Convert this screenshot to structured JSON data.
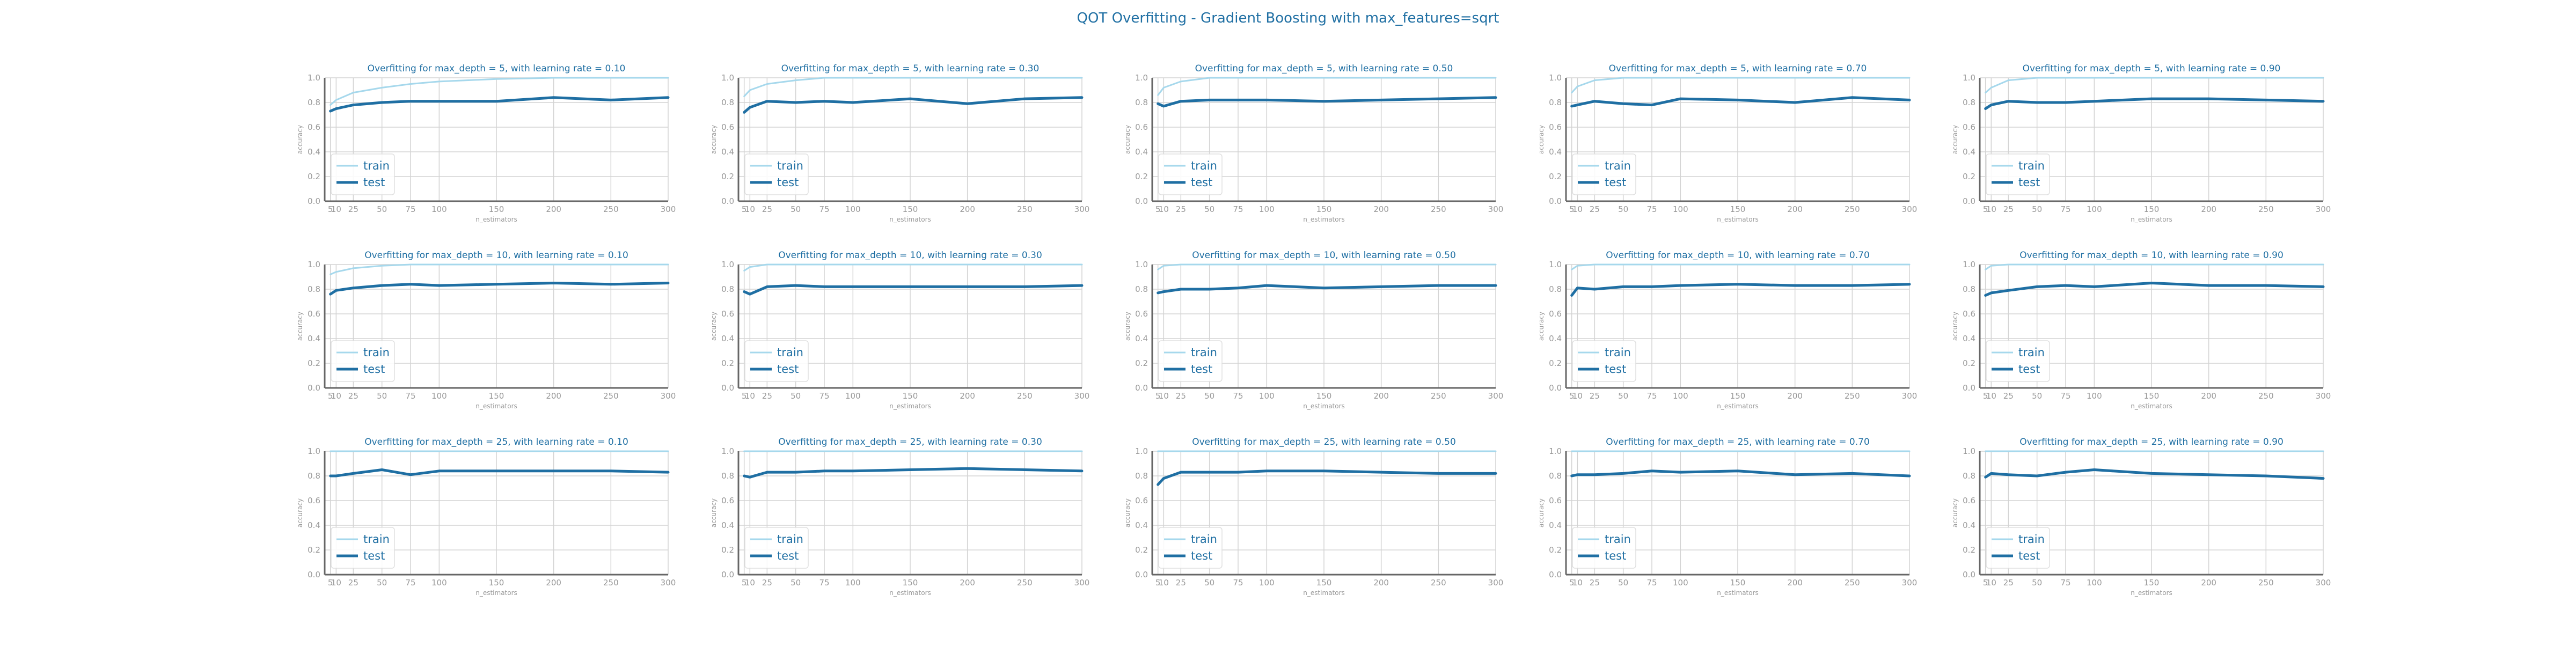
{
  "figure": {
    "title": "QOT Overfitting - Gradient Boosting with max_features=sqrt"
  },
  "colors": {
    "title": "#1f6fa3",
    "train": "#a6d8ec",
    "test": "#1f6fa3",
    "grid": "#d3d3d3",
    "axis": "#666666",
    "tick_text": "#999999",
    "legend_text": "#1f6fa3"
  },
  "chart_data": [
    {
      "type": "line",
      "title": "Overfitting for max_depth = 5, with learning rate = 0.10",
      "xlabel": "n_estimators",
      "ylabel": "accuracy",
      "xlim": [
        0,
        300
      ],
      "ylim": [
        0,
        1.0
      ],
      "xticks": [
        5,
        10,
        25,
        50,
        75,
        100,
        150,
        200,
        250,
        300
      ],
      "yticks": [
        0.0,
        0.2,
        0.4,
        0.6,
        0.8,
        1.0
      ],
      "grid": true,
      "legend": "lower left",
      "x": [
        5,
        10,
        25,
        50,
        75,
        100,
        150,
        200,
        250,
        300
      ],
      "series": [
        {
          "name": "train",
          "values": [
            0.78,
            0.82,
            0.88,
            0.92,
            0.95,
            0.97,
            0.99,
            1.0,
            1.0,
            1.0
          ]
        },
        {
          "name": "test",
          "values": [
            0.73,
            0.75,
            0.78,
            0.8,
            0.81,
            0.81,
            0.81,
            0.84,
            0.82,
            0.84
          ]
        }
      ]
    },
    {
      "type": "line",
      "title": "Overfitting for max_depth = 5, with learning rate = 0.30",
      "xlabel": "n_estimators",
      "ylabel": "accuracy",
      "xlim": [
        0,
        300
      ],
      "ylim": [
        0,
        1.0
      ],
      "xticks": [
        5,
        10,
        25,
        50,
        75,
        100,
        150,
        200,
        250,
        300
      ],
      "yticks": [
        0.0,
        0.2,
        0.4,
        0.6,
        0.8,
        1.0
      ],
      "grid": true,
      "legend": "lower left",
      "x": [
        5,
        10,
        25,
        50,
        75,
        100,
        150,
        200,
        250,
        300
      ],
      "series": [
        {
          "name": "train",
          "values": [
            0.85,
            0.9,
            0.95,
            0.98,
            1.0,
            1.0,
            1.0,
            1.0,
            1.0,
            1.0
          ]
        },
        {
          "name": "test",
          "values": [
            0.72,
            0.76,
            0.81,
            0.8,
            0.81,
            0.8,
            0.83,
            0.79,
            0.83,
            0.84
          ]
        }
      ]
    },
    {
      "type": "line",
      "title": "Overfitting for max_depth = 5, with learning rate = 0.50",
      "xlabel": "n_estimators",
      "ylabel": "accuracy",
      "xlim": [
        0,
        300
      ],
      "ylim": [
        0,
        1.0
      ],
      "xticks": [
        5,
        10,
        25,
        50,
        75,
        100,
        150,
        200,
        250,
        300
      ],
      "yticks": [
        0.0,
        0.2,
        0.4,
        0.6,
        0.8,
        1.0
      ],
      "grid": true,
      "legend": "lower left",
      "x": [
        5,
        10,
        25,
        50,
        75,
        100,
        150,
        200,
        250,
        300
      ],
      "series": [
        {
          "name": "train",
          "values": [
            0.86,
            0.92,
            0.97,
            1.0,
            1.0,
            1.0,
            1.0,
            1.0,
            1.0,
            1.0
          ]
        },
        {
          "name": "test",
          "values": [
            0.79,
            0.77,
            0.81,
            0.82,
            0.82,
            0.82,
            0.81,
            0.82,
            0.83,
            0.84
          ]
        }
      ]
    },
    {
      "type": "line",
      "title": "Overfitting for max_depth = 5, with learning rate = 0.70",
      "xlabel": "n_estimators",
      "ylabel": "accuracy",
      "xlim": [
        0,
        300
      ],
      "ylim": [
        0,
        1.0
      ],
      "xticks": [
        5,
        10,
        25,
        50,
        75,
        100,
        150,
        200,
        250,
        300
      ],
      "yticks": [
        0.0,
        0.2,
        0.4,
        0.6,
        0.8,
        1.0
      ],
      "grid": true,
      "legend": "lower left",
      "x": [
        5,
        10,
        25,
        50,
        75,
        100,
        150,
        200,
        250,
        300
      ],
      "series": [
        {
          "name": "train",
          "values": [
            0.88,
            0.93,
            0.98,
            1.0,
            1.0,
            1.0,
            1.0,
            1.0,
            1.0,
            1.0
          ]
        },
        {
          "name": "test",
          "values": [
            0.77,
            0.78,
            0.81,
            0.79,
            0.78,
            0.83,
            0.82,
            0.8,
            0.84,
            0.82
          ]
        }
      ]
    },
    {
      "type": "line",
      "title": "Overfitting for max_depth = 5, with learning rate = 0.90",
      "xlabel": "n_estimators",
      "ylabel": "accuracy",
      "xlim": [
        0,
        300
      ],
      "ylim": [
        0,
        1.0
      ],
      "xticks": [
        5,
        10,
        25,
        50,
        75,
        100,
        150,
        200,
        250,
        300
      ],
      "yticks": [
        0.0,
        0.2,
        0.4,
        0.6,
        0.8,
        1.0
      ],
      "grid": true,
      "legend": "lower left",
      "x": [
        5,
        10,
        25,
        50,
        75,
        100,
        150,
        200,
        250,
        300
      ],
      "series": [
        {
          "name": "train",
          "values": [
            0.88,
            0.92,
            0.98,
            1.0,
            1.0,
            1.0,
            1.0,
            1.0,
            1.0,
            1.0
          ]
        },
        {
          "name": "test",
          "values": [
            0.75,
            0.78,
            0.81,
            0.8,
            0.8,
            0.81,
            0.83,
            0.83,
            0.82,
            0.81
          ]
        }
      ]
    },
    {
      "type": "line",
      "title": "Overfitting for max_depth = 10, with learning rate = 0.10",
      "xlabel": "n_estimators",
      "ylabel": "accuracy",
      "xlim": [
        0,
        300
      ],
      "ylim": [
        0,
        1.0
      ],
      "xticks": [
        5,
        10,
        25,
        50,
        75,
        100,
        150,
        200,
        250,
        300
      ],
      "yticks": [
        0.0,
        0.2,
        0.4,
        0.6,
        0.8,
        1.0
      ],
      "grid": true,
      "legend": "lower left",
      "x": [
        5,
        10,
        25,
        50,
        75,
        100,
        150,
        200,
        250,
        300
      ],
      "series": [
        {
          "name": "train",
          "values": [
            0.92,
            0.94,
            0.97,
            0.99,
            1.0,
            1.0,
            1.0,
            1.0,
            1.0,
            1.0
          ]
        },
        {
          "name": "test",
          "values": [
            0.76,
            0.79,
            0.81,
            0.83,
            0.84,
            0.83,
            0.84,
            0.85,
            0.84,
            0.85
          ]
        }
      ]
    },
    {
      "type": "line",
      "title": "Overfitting for max_depth = 10, with learning rate = 0.30",
      "xlabel": "n_estimators",
      "ylabel": "accuracy",
      "xlim": [
        0,
        300
      ],
      "ylim": [
        0,
        1.0
      ],
      "xticks": [
        5,
        10,
        25,
        50,
        75,
        100,
        150,
        200,
        250,
        300
      ],
      "yticks": [
        0.0,
        0.2,
        0.4,
        0.6,
        0.8,
        1.0
      ],
      "grid": true,
      "legend": "lower left",
      "x": [
        5,
        10,
        25,
        50,
        75,
        100,
        150,
        200,
        250,
        300
      ],
      "series": [
        {
          "name": "train",
          "values": [
            0.95,
            0.98,
            1.0,
            1.0,
            1.0,
            1.0,
            1.0,
            1.0,
            1.0,
            1.0
          ]
        },
        {
          "name": "test",
          "values": [
            0.78,
            0.76,
            0.82,
            0.83,
            0.82,
            0.82,
            0.82,
            0.82,
            0.82,
            0.83
          ]
        }
      ]
    },
    {
      "type": "line",
      "title": "Overfitting for max_depth = 10, with learning rate = 0.50",
      "xlabel": "n_estimators",
      "ylabel": "accuracy",
      "xlim": [
        0,
        300
      ],
      "ylim": [
        0,
        1.0
      ],
      "xticks": [
        5,
        10,
        25,
        50,
        75,
        100,
        150,
        200,
        250,
        300
      ],
      "yticks": [
        0.0,
        0.2,
        0.4,
        0.6,
        0.8,
        1.0
      ],
      "grid": true,
      "legend": "lower left",
      "x": [
        5,
        10,
        25,
        50,
        75,
        100,
        150,
        200,
        250,
        300
      ],
      "series": [
        {
          "name": "train",
          "values": [
            0.96,
            0.99,
            1.0,
            1.0,
            1.0,
            1.0,
            1.0,
            1.0,
            1.0,
            1.0
          ]
        },
        {
          "name": "test",
          "values": [
            0.77,
            0.78,
            0.8,
            0.8,
            0.81,
            0.83,
            0.81,
            0.82,
            0.83,
            0.83
          ]
        }
      ]
    },
    {
      "type": "line",
      "title": "Overfitting for max_depth = 10, with learning rate = 0.70",
      "xlabel": "n_estimators",
      "ylabel": "accuracy",
      "xlim": [
        0,
        300
      ],
      "ylim": [
        0,
        1.0
      ],
      "xticks": [
        5,
        10,
        25,
        50,
        75,
        100,
        150,
        200,
        250,
        300
      ],
      "yticks": [
        0.0,
        0.2,
        0.4,
        0.6,
        0.8,
        1.0
      ],
      "grid": true,
      "legend": "lower left",
      "x": [
        5,
        10,
        25,
        50,
        75,
        100,
        150,
        200,
        250,
        300
      ],
      "series": [
        {
          "name": "train",
          "values": [
            0.96,
            0.99,
            1.0,
            1.0,
            1.0,
            1.0,
            1.0,
            1.0,
            1.0,
            1.0
          ]
        },
        {
          "name": "test",
          "values": [
            0.75,
            0.81,
            0.8,
            0.82,
            0.82,
            0.83,
            0.84,
            0.83,
            0.83,
            0.84
          ]
        }
      ]
    },
    {
      "type": "line",
      "title": "Overfitting for max_depth = 10, with learning rate = 0.90",
      "xlabel": "n_estimators",
      "ylabel": "accuracy",
      "xlim": [
        0,
        300
      ],
      "ylim": [
        0,
        1.0
      ],
      "xticks": [
        5,
        10,
        25,
        50,
        75,
        100,
        150,
        200,
        250,
        300
      ],
      "yticks": [
        0.0,
        0.2,
        0.4,
        0.6,
        0.8,
        1.0
      ],
      "grid": true,
      "legend": "lower left",
      "x": [
        5,
        10,
        25,
        50,
        75,
        100,
        150,
        200,
        250,
        300
      ],
      "series": [
        {
          "name": "train",
          "values": [
            0.96,
            0.99,
            1.0,
            1.0,
            1.0,
            1.0,
            1.0,
            1.0,
            1.0,
            1.0
          ]
        },
        {
          "name": "test",
          "values": [
            0.75,
            0.77,
            0.79,
            0.82,
            0.83,
            0.82,
            0.85,
            0.83,
            0.83,
            0.82
          ]
        }
      ]
    },
    {
      "type": "line",
      "title": "Overfitting for max_depth = 25, with learning rate = 0.10",
      "xlabel": "n_estimators",
      "ylabel": "accuracy",
      "xlim": [
        0,
        300
      ],
      "ylim": [
        0,
        1.0
      ],
      "xticks": [
        5,
        10,
        25,
        50,
        75,
        100,
        150,
        200,
        250,
        300
      ],
      "yticks": [
        0.0,
        0.2,
        0.4,
        0.6,
        0.8,
        1.0
      ],
      "grid": true,
      "legend": "lower left",
      "x": [
        5,
        10,
        25,
        50,
        75,
        100,
        150,
        200,
        250,
        300
      ],
      "series": [
        {
          "name": "train",
          "values": [
            1.0,
            1.0,
            1.0,
            1.0,
            1.0,
            1.0,
            1.0,
            1.0,
            1.0,
            1.0
          ]
        },
        {
          "name": "test",
          "values": [
            0.8,
            0.8,
            0.82,
            0.85,
            0.81,
            0.84,
            0.84,
            0.84,
            0.84,
            0.83
          ]
        }
      ]
    },
    {
      "type": "line",
      "title": "Overfitting for max_depth = 25, with learning rate = 0.30",
      "xlabel": "n_estimators",
      "ylabel": "accuracy",
      "xlim": [
        0,
        300
      ],
      "ylim": [
        0,
        1.0
      ],
      "xticks": [
        5,
        10,
        25,
        50,
        75,
        100,
        150,
        200,
        250,
        300
      ],
      "yticks": [
        0.0,
        0.2,
        0.4,
        0.6,
        0.8,
        1.0
      ],
      "grid": true,
      "legend": "lower left",
      "x": [
        5,
        10,
        25,
        50,
        75,
        100,
        150,
        200,
        250,
        300
      ],
      "series": [
        {
          "name": "train",
          "values": [
            1.0,
            1.0,
            1.0,
            1.0,
            1.0,
            1.0,
            1.0,
            1.0,
            1.0,
            1.0
          ]
        },
        {
          "name": "test",
          "values": [
            0.8,
            0.79,
            0.83,
            0.83,
            0.84,
            0.84,
            0.85,
            0.86,
            0.85,
            0.84
          ]
        }
      ]
    },
    {
      "type": "line",
      "title": "Overfitting for max_depth = 25, with learning rate = 0.50",
      "xlabel": "n_estimators",
      "ylabel": "accuracy",
      "xlim": [
        0,
        300
      ],
      "ylim": [
        0,
        1.0
      ],
      "xticks": [
        5,
        10,
        25,
        50,
        75,
        100,
        150,
        200,
        250,
        300
      ],
      "yticks": [
        0.0,
        0.2,
        0.4,
        0.6,
        0.8,
        1.0
      ],
      "grid": true,
      "legend": "lower left",
      "x": [
        5,
        10,
        25,
        50,
        75,
        100,
        150,
        200,
        250,
        300
      ],
      "series": [
        {
          "name": "train",
          "values": [
            1.0,
            1.0,
            1.0,
            1.0,
            1.0,
            1.0,
            1.0,
            1.0,
            1.0,
            1.0
          ]
        },
        {
          "name": "test",
          "values": [
            0.73,
            0.78,
            0.83,
            0.83,
            0.83,
            0.84,
            0.84,
            0.83,
            0.82,
            0.82
          ]
        }
      ]
    },
    {
      "type": "line",
      "title": "Overfitting for max_depth = 25, with learning rate = 0.70",
      "xlabel": "n_estimators",
      "ylabel": "accuracy",
      "xlim": [
        0,
        300
      ],
      "ylim": [
        0,
        1.0
      ],
      "xticks": [
        5,
        10,
        25,
        50,
        75,
        100,
        150,
        200,
        250,
        300
      ],
      "yticks": [
        0.0,
        0.2,
        0.4,
        0.6,
        0.8,
        1.0
      ],
      "grid": true,
      "legend": "lower left",
      "x": [
        5,
        10,
        25,
        50,
        75,
        100,
        150,
        200,
        250,
        300
      ],
      "series": [
        {
          "name": "train",
          "values": [
            1.0,
            1.0,
            1.0,
            1.0,
            1.0,
            1.0,
            1.0,
            1.0,
            1.0,
            1.0
          ]
        },
        {
          "name": "test",
          "values": [
            0.8,
            0.81,
            0.81,
            0.82,
            0.84,
            0.83,
            0.84,
            0.81,
            0.82,
            0.8
          ]
        }
      ]
    },
    {
      "type": "line",
      "title": "Overfitting for max_depth = 25, with learning rate = 0.90",
      "xlabel": "n_estimators",
      "ylabel": "accuracy",
      "xlim": [
        0,
        300
      ],
      "ylim": [
        0,
        1.0
      ],
      "xticks": [
        5,
        10,
        25,
        50,
        75,
        100,
        150,
        200,
        250,
        300
      ],
      "yticks": [
        0.0,
        0.2,
        0.4,
        0.6,
        0.8,
        1.0
      ],
      "grid": true,
      "legend": "lower left",
      "x": [
        5,
        10,
        25,
        50,
        75,
        100,
        150,
        200,
        250,
        300
      ],
      "series": [
        {
          "name": "train",
          "values": [
            1.0,
            1.0,
            1.0,
            1.0,
            1.0,
            1.0,
            1.0,
            1.0,
            1.0,
            1.0
          ]
        },
        {
          "name": "test",
          "values": [
            0.79,
            0.82,
            0.81,
            0.8,
            0.83,
            0.85,
            0.82,
            0.81,
            0.8,
            0.78
          ]
        }
      ]
    }
  ]
}
